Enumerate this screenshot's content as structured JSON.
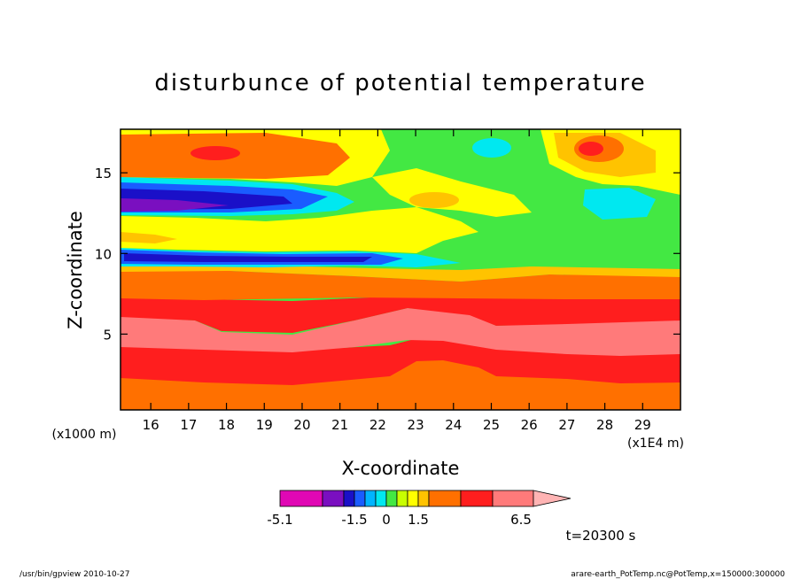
{
  "chart_data": {
    "type": "heatmap",
    "subtype": "filled-contour",
    "title": "disturbunce of potential temperature",
    "xlabel": "X-coordinate",
    "ylabel": "Z-coordinate",
    "x_unit_label": "(x1E4 m)",
    "y_unit_label": "(x1000 m)",
    "xlim": [
      15.2,
      30
    ],
    "ylim": [
      0.3,
      17.7
    ],
    "x_ticks": [
      "16",
      "17",
      "18",
      "19",
      "20",
      "21",
      "22",
      "23",
      "24",
      "25",
      "26",
      "27",
      "28",
      "29"
    ],
    "y_ticks": [
      "5",
      "10",
      "15"
    ],
    "x_tick_values": [
      16,
      17,
      18,
      19,
      20,
      21,
      22,
      23,
      24,
      25,
      26,
      27,
      28,
      29
    ],
    "y_tick_values": [
      5,
      10,
      15
    ],
    "grid": false,
    "colorbar": {
      "tick_labels": [
        "-5.1",
        "-1.5",
        "0",
        "1.5",
        "6.5"
      ],
      "colors": [
        "#e007b4",
        "#7a0fc0",
        "#1a10c8",
        "#1a5cff",
        "#00b4ff",
        "#00e8f0",
        "#43e843",
        "#c8ff00",
        "#ffff00",
        "#ffc300",
        "#ff7000",
        "#ff1e1e",
        "#ff7a7a",
        "#ffb4b4"
      ]
    },
    "layers_at_x16": [
      {
        "z_from": 0.3,
        "z_to": 2.0,
        "value_class": "orange"
      },
      {
        "z_from": 2.0,
        "z_to": 4.0,
        "value_class": "red"
      },
      {
        "z_from": 4.0,
        "z_to": 5.8,
        "value_class": "pink"
      },
      {
        "z_from": 5.8,
        "z_to": 7.0,
        "value_class": "red"
      },
      {
        "z_from": 7.0,
        "z_to": 8.6,
        "value_class": "orange"
      },
      {
        "z_from": 8.6,
        "z_to": 9.4,
        "value_class": "yellow"
      },
      {
        "z_from": 9.4,
        "z_to": 10.3,
        "value_class": "blue"
      },
      {
        "z_from": 10.3,
        "z_to": 12.0,
        "value_class": "yellow"
      },
      {
        "z_from": 12.0,
        "z_to": 14.5,
        "value_class": "blue"
      },
      {
        "z_from": 14.5,
        "z_to": 17.7,
        "value_class": "orange"
      }
    ],
    "annotation_time": "t=20300 s"
  },
  "footer": {
    "left": "/usr/bin/gpview   2010-10-27",
    "right": "arare-earth_PotTemp.nc@PotTemp,x=150000:300000"
  }
}
